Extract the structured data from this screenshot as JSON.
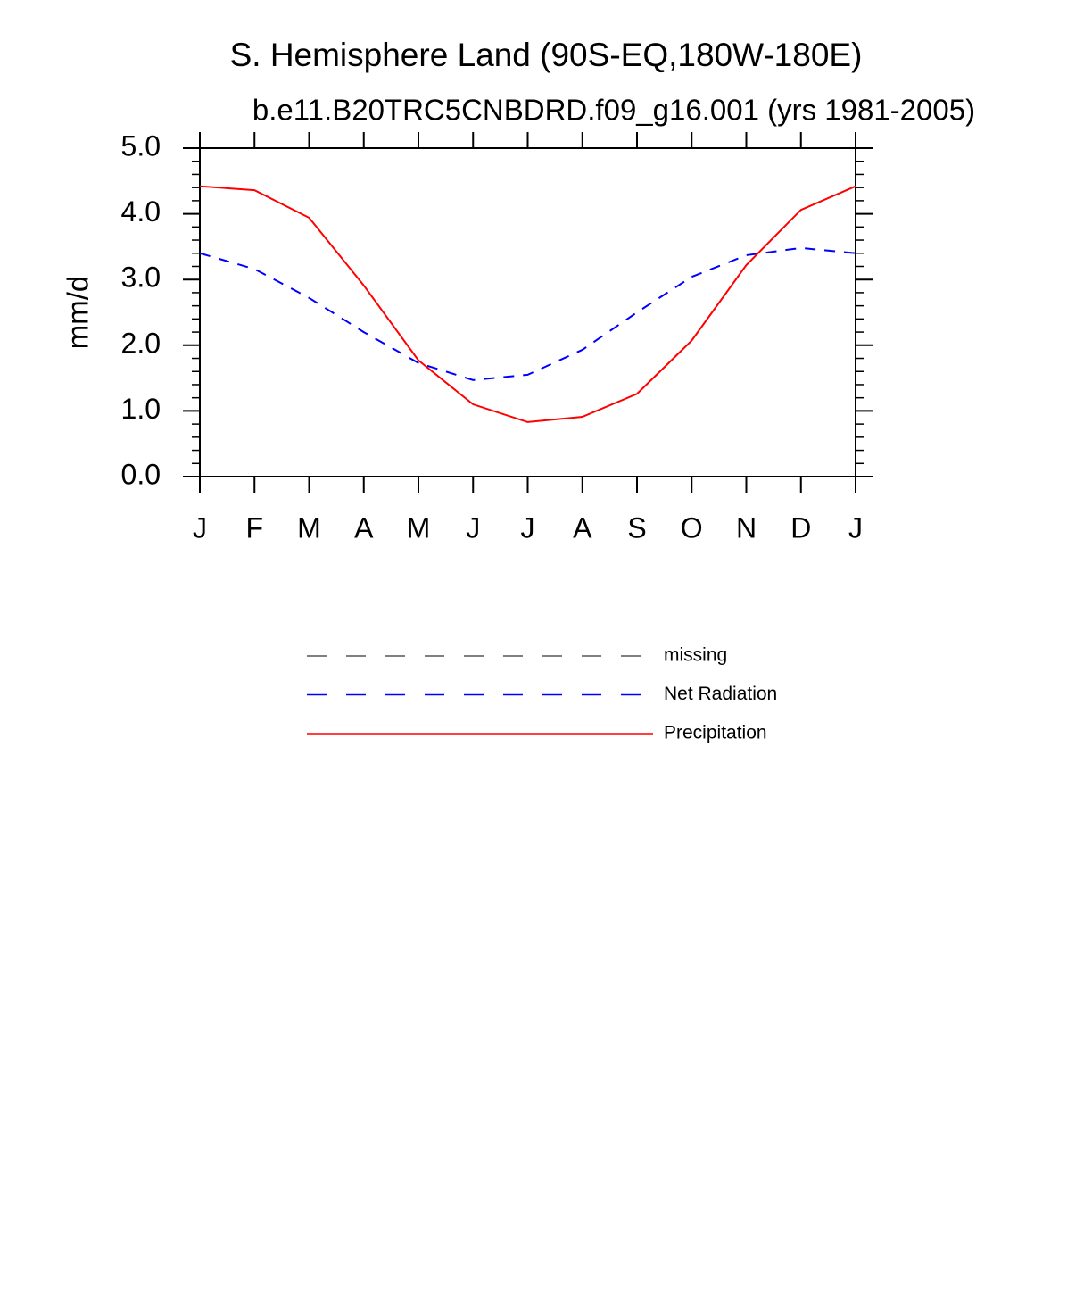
{
  "chart_data": {
    "type": "line",
    "title": "S. Hemisphere Land (90S-EQ,180W-180E)",
    "subtitle": "b.e11.B20TRC5CNBDRD.f09_g16.001 (yrs 1981-2005)",
    "y_label": "mm/d",
    "categories": [
      "J",
      "F",
      "M",
      "A",
      "M",
      "J",
      "J",
      "A",
      "S",
      "O",
      "N",
      "D",
      "J"
    ],
    "series": [
      {
        "name": "missing",
        "color": "#555555",
        "dash": true,
        "values": [
          null,
          null,
          null,
          null,
          null,
          null,
          null,
          null,
          null,
          null,
          null,
          null,
          null
        ]
      },
      {
        "name": "Net Radiation",
        "color": "#0000ff",
        "dash": true,
        "values": [
          3.4,
          3.16,
          2.72,
          2.2,
          1.73,
          1.47,
          1.55,
          1.93,
          2.5,
          3.04,
          3.37,
          3.48,
          3.4
        ]
      },
      {
        "name": "Precipitation",
        "color": "#ff0000",
        "dash": false,
        "values": [
          4.42,
          4.36,
          3.94,
          2.91,
          1.77,
          1.1,
          0.83,
          0.91,
          1.26,
          2.07,
          3.22,
          4.06,
          4.42
        ]
      }
    ],
    "ylim": [
      0,
      5
    ],
    "yticks": [
      {
        "value": 0,
        "label": "0.0"
      },
      {
        "value": 1,
        "label": "1.0"
      },
      {
        "value": 2,
        "label": "2.0"
      },
      {
        "value": 3,
        "label": "3.0"
      },
      {
        "value": 4,
        "label": "4.0"
      },
      {
        "value": 5,
        "label": "5.0"
      }
    ],
    "yminorticks": [
      0.2,
      0.4,
      0.6,
      0.8,
      1.2,
      1.4,
      1.6,
      1.8,
      2.2,
      2.4,
      2.6,
      2.8,
      3.2,
      3.4,
      3.6,
      3.8,
      4.2,
      4.4,
      4.6,
      4.8
    ],
    "grid": false
  }
}
